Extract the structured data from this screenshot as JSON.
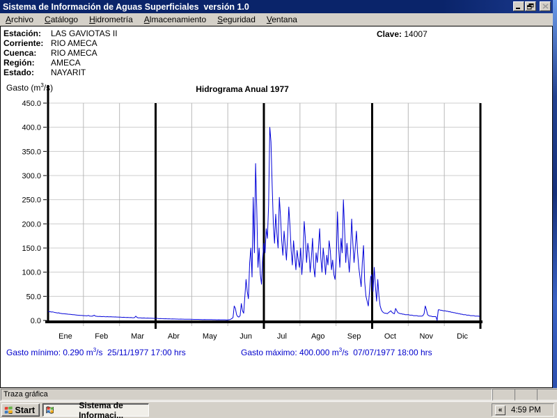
{
  "window": {
    "title": "Sistema de Información de Aguas Superficiales  versión 1.0"
  },
  "menu_bar": {
    "items": [
      {
        "label": "Archivo"
      },
      {
        "label": "Catálogo"
      },
      {
        "label": "Hidrometría"
      },
      {
        "label": "Almacenamiento"
      },
      {
        "label": "Seguridad"
      },
      {
        "label": "Ventana"
      }
    ]
  },
  "station_panel": {
    "rows": [
      {
        "label": "Estación:",
        "value": "LAS GAVIOTAS II"
      },
      {
        "label": "Corriente:",
        "value": "RIO AMECA"
      },
      {
        "label": "Cuenca:",
        "value": "RIO AMECA"
      },
      {
        "label": "Región:",
        "value": "AMECA"
      },
      {
        "label": "Estado:",
        "value": "NAYARIT"
      }
    ],
    "clave_label": "Clave:",
    "clave_value": "14007"
  },
  "chart": {
    "title": "Hidrograma Anual 1977",
    "y_axis_label": {
      "pre": "Gasto (m",
      "sup": "3",
      "post": "/s)"
    },
    "line_color": "#0000d8",
    "grid_color_h": "#cccccc",
    "grid_color_v": "#b8b8b8"
  },
  "chart_data": {
    "type": "line",
    "title": "Hidrograma Anual 1977",
    "ylabel": "Gasto (m3/s)",
    "xlabel": "",
    "ylim": [
      0,
      450
    ],
    "ytick_step": 50,
    "x_unit": "day_of_year_1977",
    "categories": [
      "Ene",
      "Feb",
      "Mar",
      "Abr",
      "May",
      "Jun",
      "Jul",
      "Ago",
      "Sep",
      "Oct",
      "Nov",
      "Dic"
    ],
    "quarter_dividers": [
      "Ene",
      "Abr",
      "Jul",
      "Oct"
    ],
    "series": [
      {
        "name": "Gasto diario 1977",
        "values": [
          19,
          18.5,
          18,
          17.5,
          17.8,
          17,
          16.5,
          16,
          15.5,
          15.8,
          15,
          14.5,
          14.2,
          14,
          13.8,
          13.5,
          13.2,
          13,
          12.8,
          12.5,
          12.2,
          12,
          11.8,
          11.5,
          11.3,
          11,
          10.8,
          10.6,
          10.4,
          10.2,
          10,
          10,
          9.8,
          9.5,
          10.5,
          9.2,
          9,
          8.8,
          9.5,
          11,
          9,
          8.6,
          8.4,
          8.2,
          8.5,
          8,
          7.9,
          8.3,
          7.8,
          7.7,
          8,
          7.6,
          7.5,
          7.8,
          7.4,
          7.3,
          7.2,
          7.4,
          7.1,
          7,
          6.8,
          6.9,
          6.6,
          6.5,
          6.7,
          6.3,
          6.2,
          6.4,
          6,
          5.9,
          6.1,
          5.8,
          5.6,
          5.9,
          9,
          6.5,
          5.4,
          5.3,
          5.5,
          5.1,
          5,
          5.2,
          4.9,
          4.8,
          5,
          4.7,
          4.6,
          4.8,
          4.5,
          4.4,
          4.3,
          4.1,
          4.6,
          3.9,
          3.8,
          4,
          3.7,
          3.6,
          3.5,
          3.6,
          3.4,
          3.3,
          3.4,
          3.2,
          3.1,
          3.2,
          3,
          3,
          2.9,
          2.9,
          2.8,
          2.8,
          2.9,
          2.7,
          2.7,
          2.6,
          2.6,
          2.5,
          2.5,
          2.4,
          2.4,
          2.3,
          2.3,
          2.2,
          2.2,
          2.1,
          2.1,
          2.2,
          2,
          2,
          1.9,
          1.9,
          2,
          1.8,
          1.8,
          1.8,
          1.7,
          1.7,
          1.8,
          1.6,
          1.6,
          1.6,
          1.5,
          1.5,
          1.6,
          1.5,
          1.4,
          1.4,
          1.5,
          1.4,
          1.3,
          1.2,
          1.4,
          1.8,
          2.5,
          4,
          6,
          30,
          25,
          12,
          8,
          7,
          10,
          35,
          20,
          15,
          50,
          85,
          60,
          45,
          120,
          150,
          90,
          255,
          140,
          325,
          230,
          110,
          150,
          95,
          75,
          130,
          160,
          140,
          190,
          170,
          240,
          400,
          370,
          280,
          200,
          160,
          220,
          180,
          150,
          255,
          215,
          165,
          135,
          185,
          155,
          125,
          175,
          235,
          195,
          145,
          115,
          165,
          135,
          105,
          145,
          125,
          110,
          150,
          95,
          130,
          205,
          170,
          120,
          160,
          140,
          100,
          130,
          170,
          110,
          90,
          140,
          120,
          150,
          190,
          130,
          100,
          150,
          125,
          95,
          135,
          115,
          165,
          145,
          105,
          125,
          95,
          85,
          130,
          225,
          150,
          110,
          170,
          140,
          250,
          190,
          120,
          160,
          130,
          100,
          140,
          210,
          160,
          120,
          150,
          185,
          140,
          110,
          90,
          70,
          120,
          155,
          80,
          50,
          40,
          30,
          60,
          90,
          95,
          60,
          110,
          70,
          40,
          85,
          50,
          30,
          22,
          18,
          16,
          15,
          15,
          14,
          16,
          18,
          20,
          17,
          15,
          14,
          25,
          20,
          16,
          15,
          14,
          14,
          13,
          13,
          12,
          12,
          12,
          12,
          11,
          11,
          11,
          10,
          10,
          10,
          10,
          9,
          9,
          9,
          9,
          10,
          14,
          30,
          22,
          12,
          10,
          9,
          9,
          8,
          8,
          8,
          8,
          0.29,
          22,
          22,
          21,
          21,
          20,
          20,
          20,
          19,
          19,
          18,
          18,
          17,
          17,
          16,
          16,
          15,
          15,
          14,
          14,
          13,
          13,
          12,
          12,
          12,
          11,
          11,
          11,
          10,
          10,
          10,
          10,
          9,
          9,
          9,
          9,
          8
        ]
      }
    ],
    "annotations": {
      "minimum": {
        "value": 0.29,
        "unit": "m3/s",
        "datetime": "25/11/1977 17:00 hrs"
      },
      "maximum": {
        "value": 400.0,
        "unit": "m3/s",
        "datetime": "07/07/1977 18:00 hrs"
      }
    }
  },
  "footer": {
    "min": {
      "text1": "Gasto mínimo: 0.290 m",
      "sup": "3",
      "text2": "/s  25/11/1977 17:00 hrs"
    },
    "max": {
      "text1": "Gasto máximo: 400.000 m",
      "sup": "3",
      "text2": "/s  07/07/1977 18:00 hrs"
    }
  },
  "status_bar": {
    "text": "Traza gráfica"
  },
  "taskbar": {
    "start_label": "Start",
    "task_label": "Sistema de Informaci...",
    "tray_chevron": "«",
    "clock": "4:59 PM"
  }
}
